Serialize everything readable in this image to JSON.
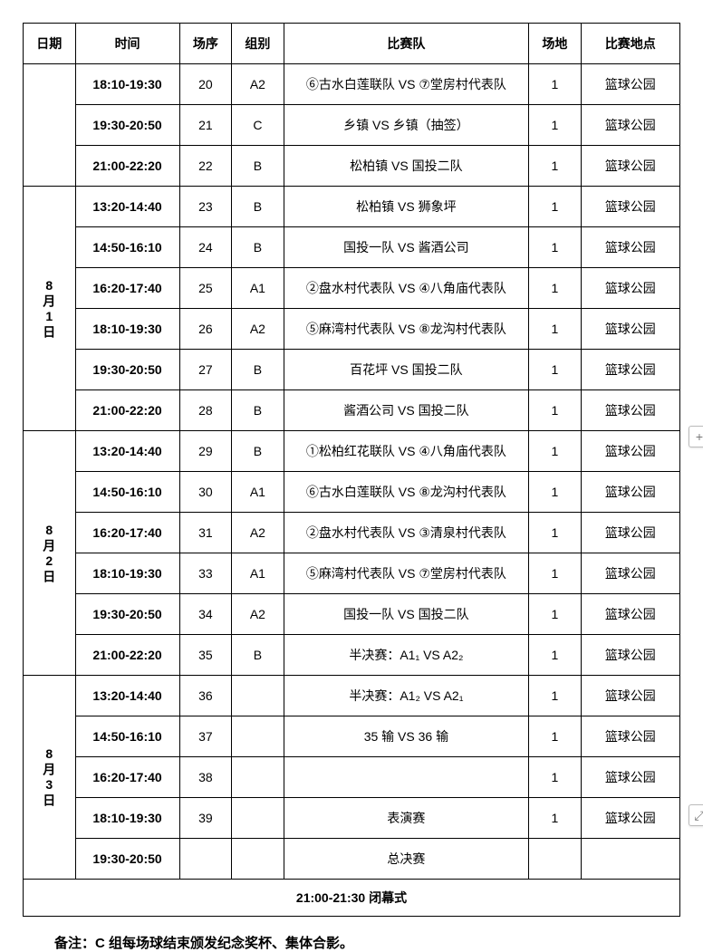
{
  "headers": {
    "date": "日期",
    "time": "时间",
    "seq": "场序",
    "group": "组别",
    "match": "比赛队",
    "venue": "场地",
    "loc": "比赛地点"
  },
  "sections": [
    {
      "date": "",
      "rows": [
        {
          "time": "18:10-19:30",
          "seq": "20",
          "group": "A2",
          "match": "⑥古水白莲联队 VS ⑦堂房村代表队",
          "venue": "1",
          "loc": "篮球公园"
        },
        {
          "time": "19:30-20:50",
          "seq": "21",
          "group": "C",
          "match": "乡镇 VS 乡镇（抽签）",
          "venue": "1",
          "loc": "篮球公园"
        },
        {
          "time": "21:00-22:20",
          "seq": "22",
          "group": "B",
          "match": "松柏镇 VS 国投二队",
          "venue": "1",
          "loc": "篮球公园"
        }
      ]
    },
    {
      "date": "8月1日",
      "rows": [
        {
          "time": "13:20-14:40",
          "seq": "23",
          "group": "B",
          "match": "松柏镇 VS 狮象坪",
          "venue": "1",
          "loc": "篮球公园"
        },
        {
          "time": "14:50-16:10",
          "seq": "24",
          "group": "B",
          "match": "国投一队 VS 酱酒公司",
          "venue": "1",
          "loc": "篮球公园"
        },
        {
          "time": "16:20-17:40",
          "seq": "25",
          "group": "A1",
          "match": "②盘水村代表队 VS ④八角庙代表队",
          "venue": "1",
          "loc": "篮球公园"
        },
        {
          "time": "18:10-19:30",
          "seq": "26",
          "group": "A2",
          "match": "⑤麻湾村代表队 VS ⑧龙沟村代表队",
          "venue": "1",
          "loc": "篮球公园"
        },
        {
          "time": "19:30-20:50",
          "seq": "27",
          "group": "B",
          "match": "百花坪 VS 国投二队",
          "venue": "1",
          "loc": "篮球公园"
        },
        {
          "time": "21:00-22:20",
          "seq": "28",
          "group": "B",
          "match": "酱酒公司 VS 国投二队",
          "venue": "1",
          "loc": "篮球公园"
        }
      ]
    },
    {
      "date": "8月2日",
      "rows": [
        {
          "time": "13:20-14:40",
          "seq": "29",
          "group": "B",
          "match": "①松柏红花联队 VS ④八角庙代表队",
          "venue": "1",
          "loc": "篮球公园"
        },
        {
          "time": "14:50-16:10",
          "seq": "30",
          "group": "A1",
          "match": "⑥古水白莲联队 VS ⑧龙沟村代表队",
          "venue": "1",
          "loc": "篮球公园"
        },
        {
          "time": "16:20-17:40",
          "seq": "31",
          "group": "A2",
          "match": "②盘水村代表队 VS ③清泉村代表队",
          "venue": "1",
          "loc": "篮球公园"
        },
        {
          "time": "18:10-19:30",
          "seq": "33",
          "group": "A1",
          "match": "⑤麻湾村代表队 VS ⑦堂房村代表队",
          "venue": "1",
          "loc": "篮球公园"
        },
        {
          "time": "19:30-20:50",
          "seq": "34",
          "group": "A2",
          "match": "国投一队 VS 国投二队",
          "venue": "1",
          "loc": "篮球公园"
        },
        {
          "time": "21:00-22:20",
          "seq": "35",
          "group": "B",
          "match": "半决赛：A1₁ VS A2₂",
          "venue": "1",
          "loc": "篮球公园"
        }
      ]
    },
    {
      "date": "8月3日",
      "rows": [
        {
          "time": "13:20-14:40",
          "seq": "36",
          "group": "",
          "match": "半决赛：A1₂ VS A2₁",
          "venue": "1",
          "loc": "篮球公园"
        },
        {
          "time": "14:50-16:10",
          "seq": "37",
          "group": "",
          "match": "35 输 VS 36 输",
          "venue": "1",
          "loc": "篮球公园"
        },
        {
          "time": "16:20-17:40",
          "seq": "38",
          "group": "",
          "match": "",
          "venue": "1",
          "loc": "篮球公园"
        },
        {
          "time": "18:10-19:30",
          "seq": "39",
          "group": "",
          "match": "表演赛",
          "venue": "1",
          "loc": "篮球公园"
        },
        {
          "time": "19:30-20:50",
          "seq": "",
          "group": "",
          "match": "总决赛",
          "venue": "",
          "loc": ""
        }
      ]
    }
  ],
  "closing": "21:00-21:30 闭幕式",
  "footer_note": "备注：C 组每场球结束颁发纪念奖杯、集体合影。"
}
